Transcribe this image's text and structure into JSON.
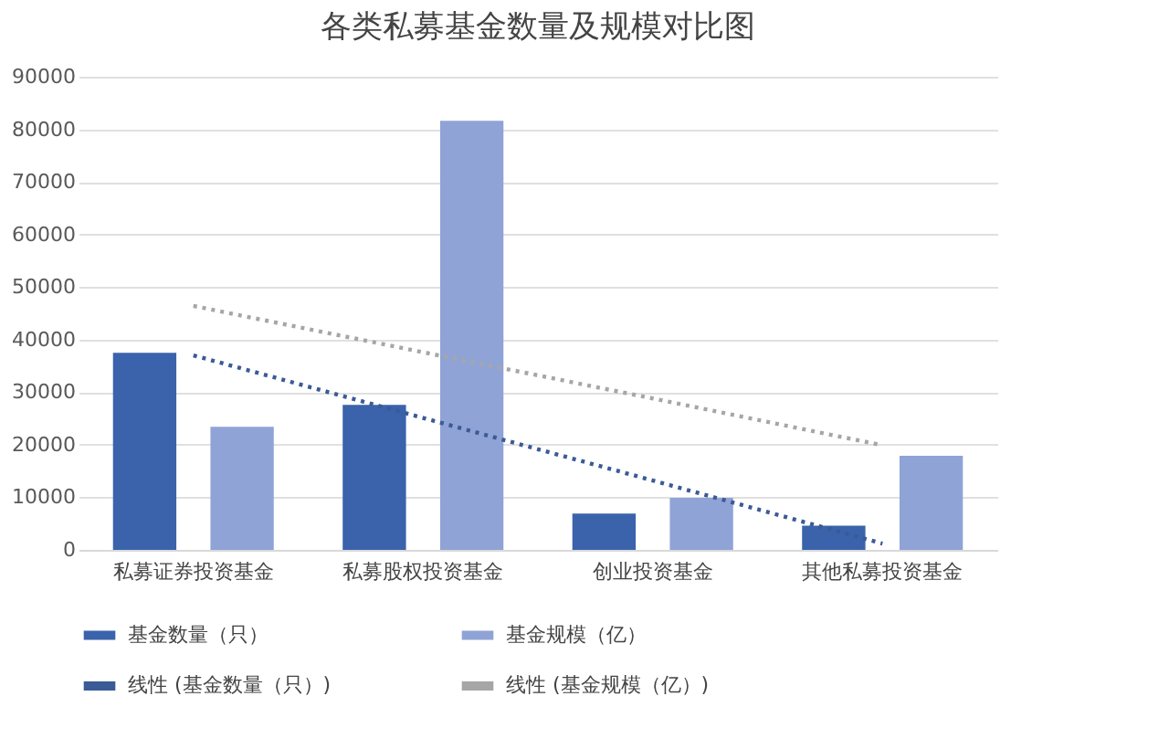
{
  "chart_data": {
    "type": "bar",
    "title": "各类私募基金数量及规模对比图",
    "categories": [
      "私募证券投资基金",
      "私募股权投资基金",
      "创业投资基金",
      "其他私募投资基金"
    ],
    "series": [
      {
        "name": "基金数量（只）",
        "color": "#3a63ab",
        "values": [
          37500,
          27600,
          6900,
          4600
        ]
      },
      {
        "name": "基金规模（亿）",
        "color": "#8fa3d6",
        "values": [
          23400,
          81600,
          9900,
          17900
        ]
      },
      {
        "name": "线性 (基金数量（只）)",
        "type": "line",
        "line_style": "dotted",
        "color": "#3b5a96",
        "values": [
          37000,
          25100,
          13200,
          1200
        ]
      },
      {
        "name": "线性 (基金规模（亿）)",
        "type": "line",
        "line_style": "dotted",
        "color": "#a6a6a6",
        "values": [
          46400,
          37600,
          28800,
          19900
        ]
      }
    ],
    "ylim": [
      0,
      90000
    ],
    "yticks": [
      0,
      10000,
      20000,
      30000,
      40000,
      50000,
      60000,
      70000,
      80000,
      90000
    ],
    "grid": "y",
    "legend": "bottom"
  }
}
